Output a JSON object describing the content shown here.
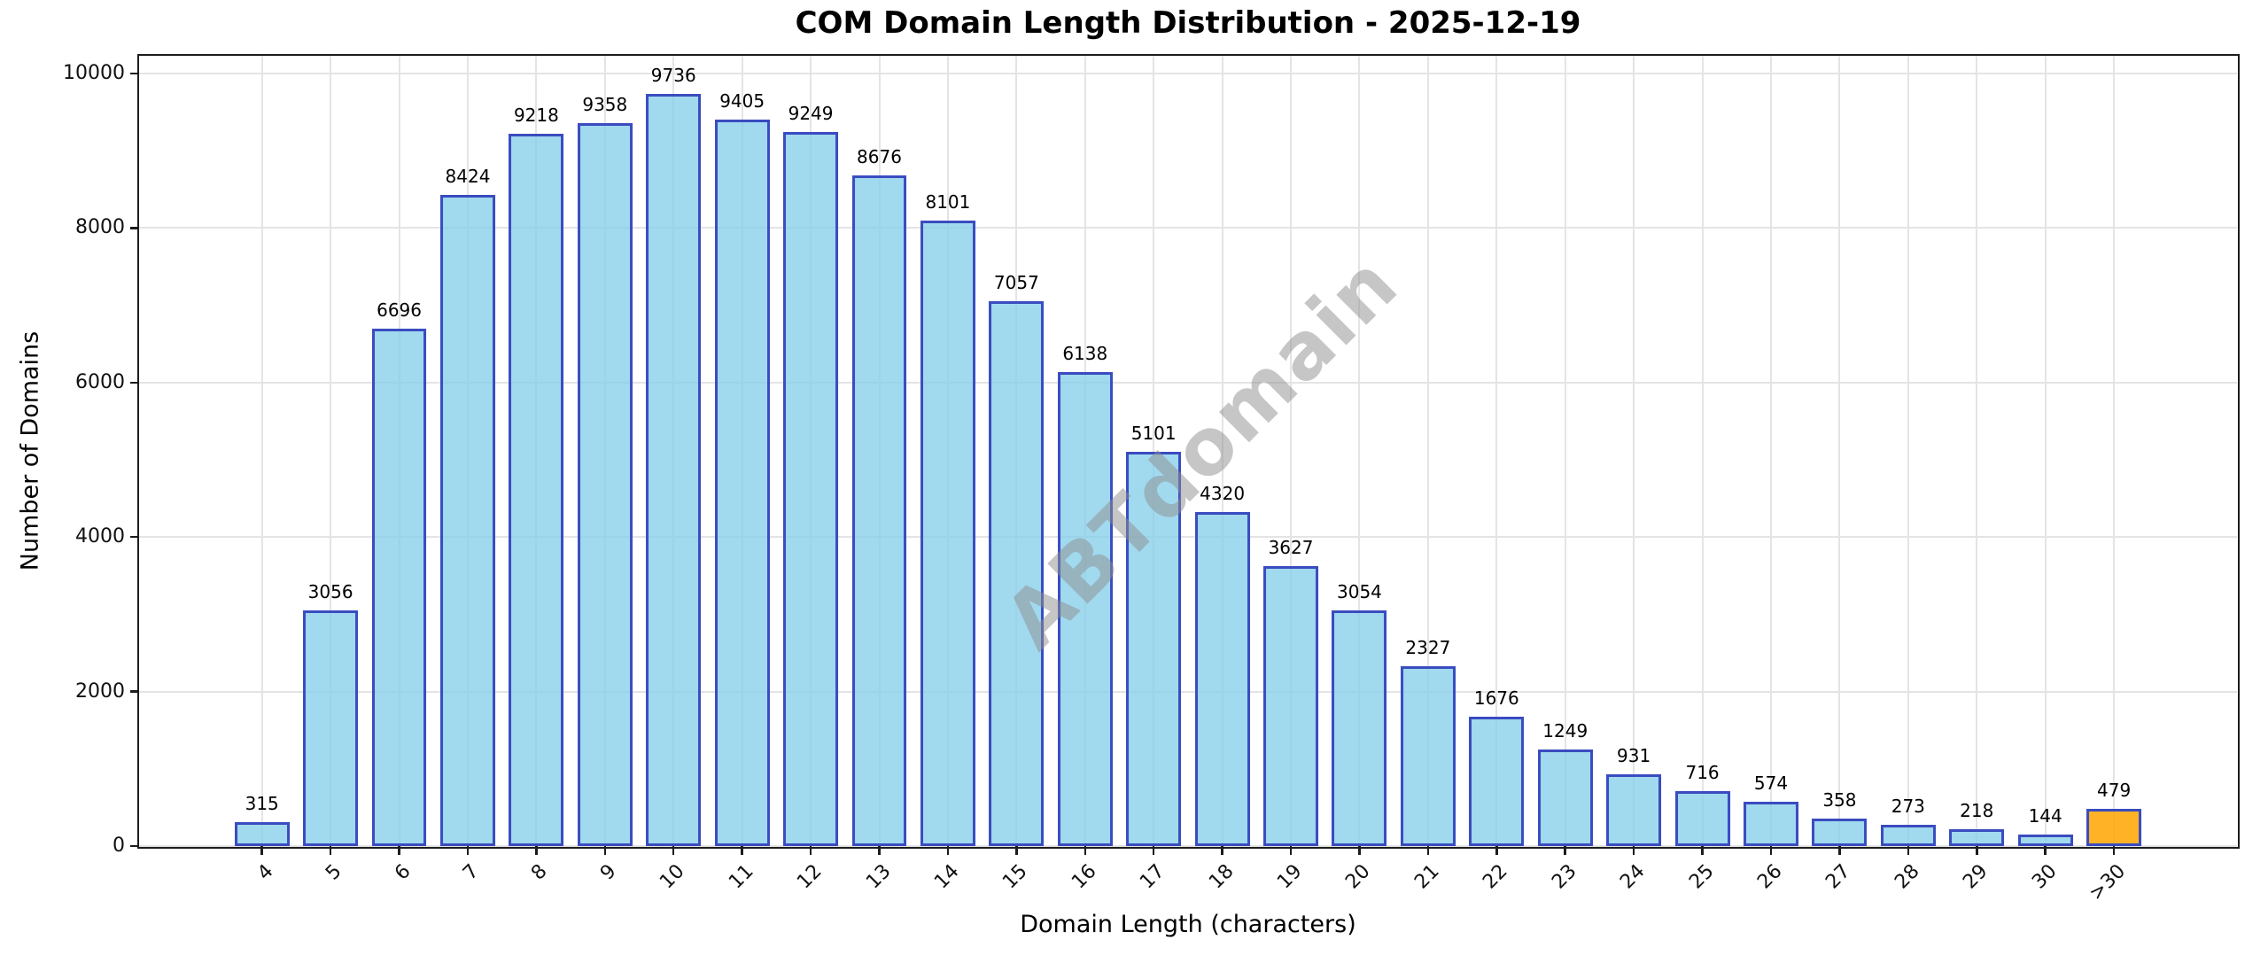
{
  "chart_data": {
    "type": "bar",
    "title": "COM Domain Length Distribution - 2025-12-19",
    "xlabel": "Domain Length (characters)",
    "ylabel": "Number of Domains",
    "categories": [
      "4",
      "5",
      "6",
      "7",
      "8",
      "9",
      "10",
      "11",
      "12",
      "13",
      "14",
      "15",
      "16",
      "17",
      "18",
      "19",
      "20",
      "21",
      "22",
      "23",
      "24",
      "25",
      "26",
      "27",
      "28",
      "29",
      "30",
      ">30"
    ],
    "values": [
      315,
      3056,
      6696,
      8424,
      9218,
      9358,
      9736,
      9405,
      9249,
      8676,
      8101,
      7057,
      6138,
      5101,
      4320,
      3627,
      3054,
      2327,
      1676,
      1249,
      931,
      716,
      574,
      358,
      273,
      218,
      144,
      479
    ],
    "yticks": [
      0,
      2000,
      4000,
      6000,
      8000,
      10000
    ],
    "ylim": [
      0,
      10000
    ],
    "grid": true,
    "legend": "none",
    "watermark": "ABTdomain",
    "bar_fill_color": "rgba(135,206,235,0.78)",
    "bar_edge_color": "#3a4cc0",
    "highlight_index": 27,
    "highlight_fill_color": "rgba(255,165,0,0.85)",
    "highlight_edge_color": "#3a4cc0",
    "grid_color": "#e4e4e4",
    "axis_color": "#1c1c1c"
  }
}
